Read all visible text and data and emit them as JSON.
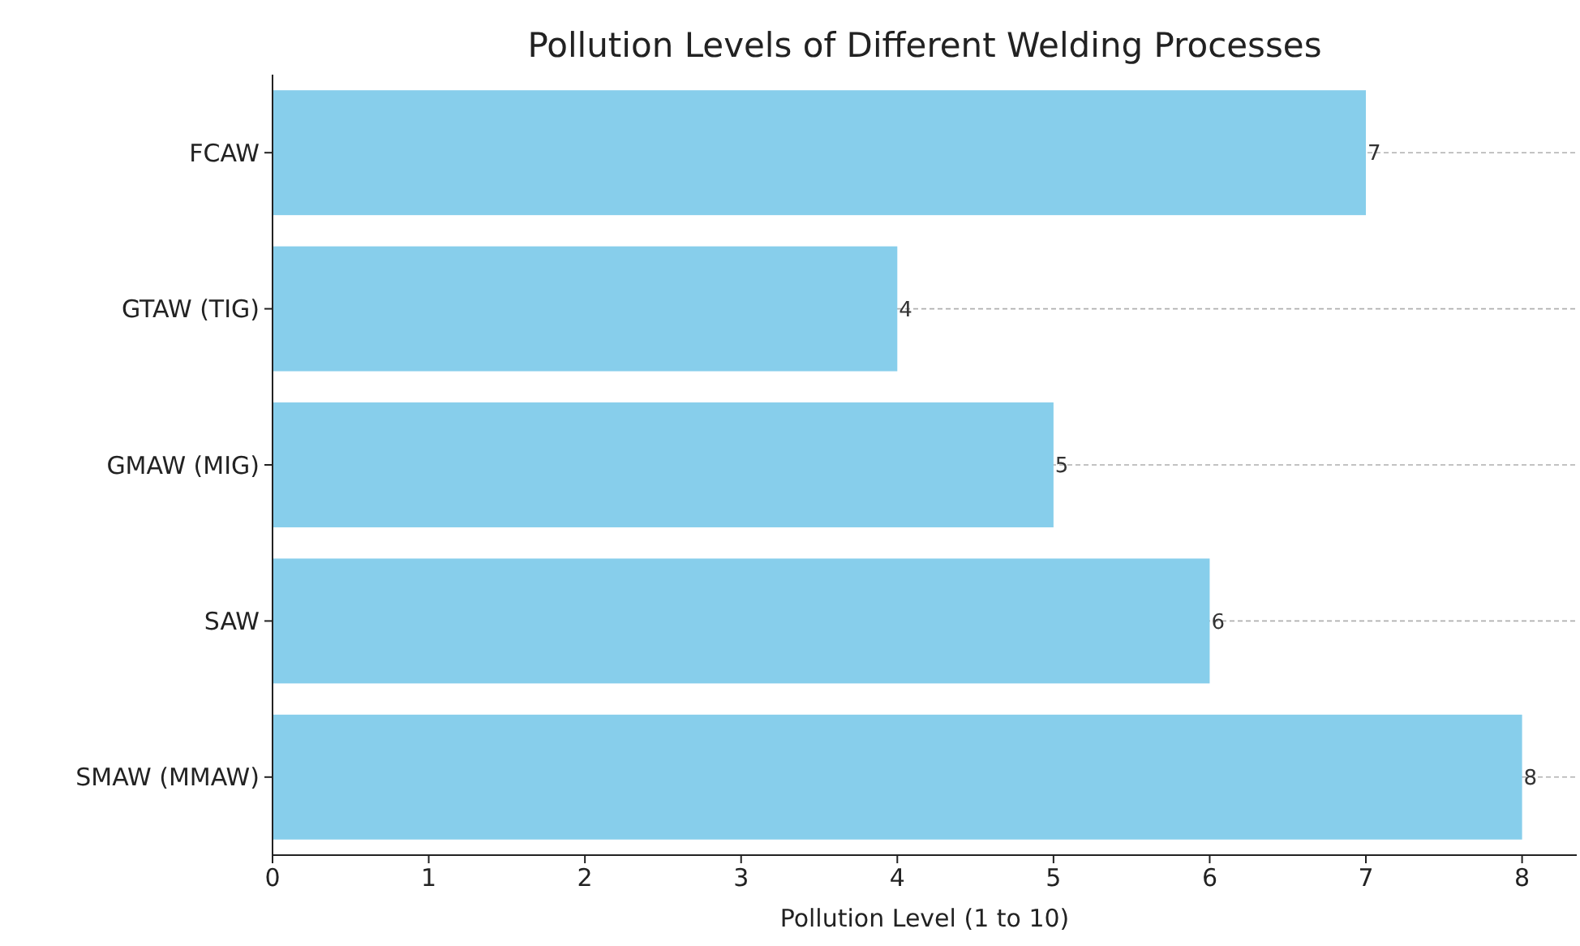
{
  "chart_data": {
    "type": "bar",
    "orientation": "horizontal",
    "title": "Pollution Levels of Different Welding Processes",
    "xlabel": "Pollution Level (1 to 10)",
    "categories": [
      "FCAW",
      "GTAW (TIG)",
      "GMAW (MIG)",
      "SAW",
      "SMAW (MMAW)"
    ],
    "values": [
      7,
      4,
      5,
      6,
      8
    ],
    "color": "#87ceeb",
    "data_labels": true,
    "xlim": [
      0,
      8.35
    ],
    "xticks": [
      0,
      1,
      2,
      3,
      4,
      5,
      6,
      7,
      8
    ],
    "grid": "y"
  }
}
